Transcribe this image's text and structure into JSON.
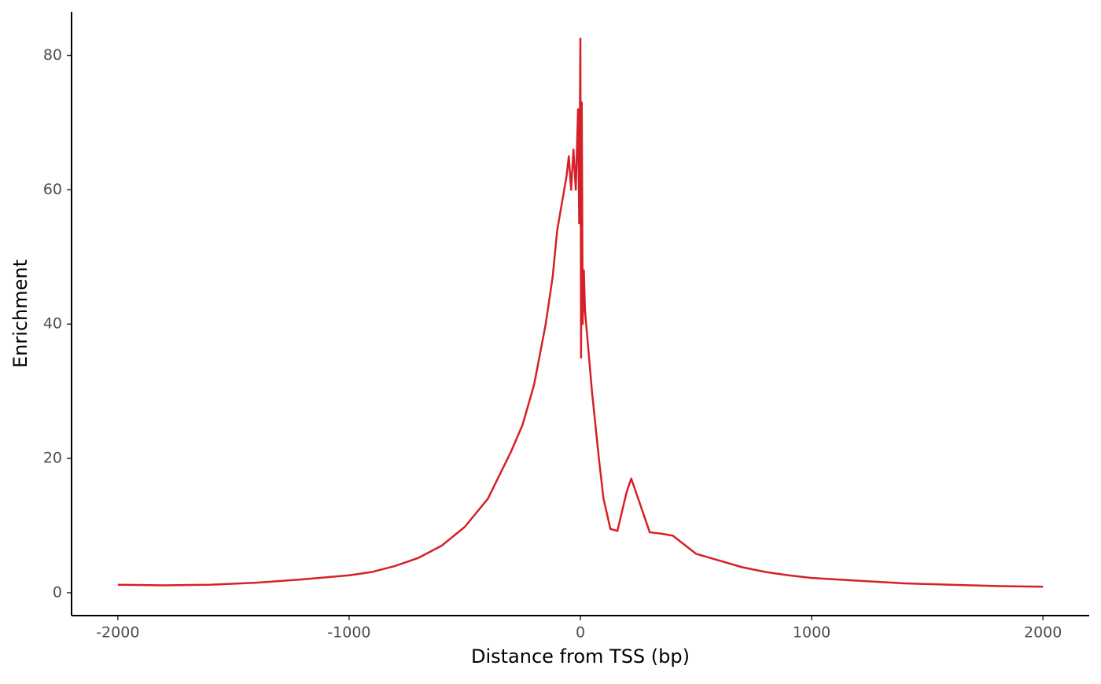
{
  "chart_data": {
    "type": "line",
    "x_label": "Distance from TSS (bp)",
    "y_label": "Enrichment",
    "x": [
      -2000,
      -1800,
      -1600,
      -1400,
      -1200,
      -1000,
      -900,
      -800,
      -700,
      -600,
      -500,
      -400,
      -300,
      -250,
      -200,
      -150,
      -120,
      -100,
      -80,
      -60,
      -50,
      -40,
      -30,
      -20,
      -10,
      -5,
      0,
      3,
      6,
      10,
      15,
      20,
      30,
      50,
      80,
      100,
      130,
      160,
      200,
      220,
      250,
      300,
      350,
      400,
      500,
      600,
      700,
      800,
      900,
      1000,
      1200,
      1400,
      1600,
      1800,
      2000
    ],
    "series": [
      {
        "color": "#d62027",
        "values": [
          1.2,
          1.1,
          1.2,
          1.5,
          2.0,
          2.6,
          3.1,
          4.0,
          5.2,
          7.0,
          9.8,
          14,
          21,
          25,
          31,
          40,
          47,
          54,
          58,
          62,
          65,
          60,
          66,
          60,
          72,
          55,
          82.5,
          35,
          73,
          40,
          48,
          42,
          38,
          30,
          20,
          14,
          9.5,
          9.2,
          15,
          17,
          14,
          9,
          8.8,
          8.5,
          5.8,
          4.8,
          3.8,
          3.1,
          2.6,
          2.2,
          1.8,
          1.4,
          1.2,
          1.0,
          0.9
        ]
      }
    ],
    "xlim": [
      -2200,
      2200
    ],
    "ylim": [
      -3.4,
      86.5
    ],
    "xticks": [
      -2000,
      -1000,
      0,
      1000,
      2000
    ],
    "yticks": [
      0,
      20,
      40,
      60,
      80
    ]
  }
}
